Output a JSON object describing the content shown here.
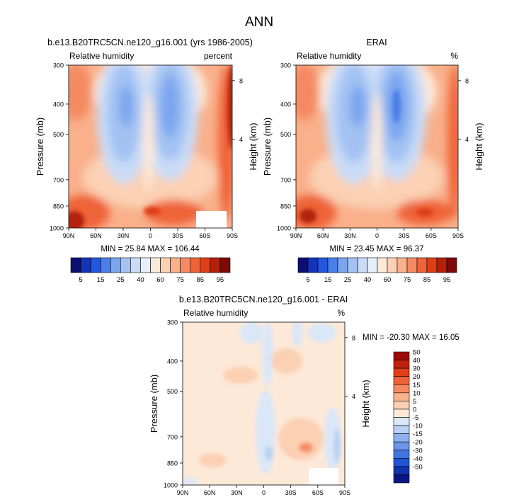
{
  "page_title": "ANN",
  "panels": [
    {
      "id": "model",
      "title": "b.e13.B20TRC5CN.ne120_g16.001 (yrs 1986-2005)",
      "left_label": "Relative humidity",
      "right_label": "percent",
      "stats": "MIN = 25.84  MAX = 106.44"
    },
    {
      "id": "obs",
      "title": "ERAI",
      "left_label": "Relative humidity",
      "right_label": "%",
      "stats": "MIN = 23.45  MAX = 96.37"
    },
    {
      "id": "diff",
      "title": "b.e13.B20TRC5CN.ne120_g16.001 - ERAI",
      "left_label": "Relative humidity",
      "right_label": "%",
      "stats": "MIN = -20.30  MAX = 16.05"
    }
  ],
  "axes": {
    "ylabel": "Pressure (mb)",
    "ylabel_right": "Height (km)",
    "pressure_ticks": [
      "300",
      "400",
      "500",
      "700",
      "850",
      "1000"
    ],
    "height_ticks": [
      "8",
      "4"
    ],
    "lat_ticks": [
      "90N",
      "60N",
      "30N",
      "0",
      "30S",
      "60S",
      "90S"
    ]
  },
  "colorbar_top": {
    "labels": [
      "5",
      "15",
      "25",
      "40",
      "60",
      "75",
      "85",
      "95"
    ],
    "colors": [
      "#0b0f73",
      "#1533b8",
      "#2357e0",
      "#4a7ee8",
      "#7aa5ef",
      "#a3c2f3",
      "#c9dbf7",
      "#e6eefb",
      "#fde9d8",
      "#fbd0b3",
      "#f9b08b",
      "#f58a62",
      "#ef6339",
      "#de3e18",
      "#b4200c",
      "#7d0a07"
    ]
  },
  "colorbar_diff": {
    "labels": [
      "50",
      "40",
      "30",
      "20",
      "15",
      "10",
      "5",
      "0",
      "-5",
      "-10",
      "-15",
      "-20",
      "-30",
      "-40",
      "-50"
    ],
    "colors": [
      "#9b0a07",
      "#c0200c",
      "#de3e18",
      "#ef6339",
      "#f58a62",
      "#f9b08b",
      "#fbd0b3",
      "#fde9d8",
      "#dae7f8",
      "#b8d0f4",
      "#8fb2ee",
      "#6a95e8",
      "#4176e0",
      "#2154d2",
      "#1231aa",
      "#0b1580"
    ]
  },
  "chart_data": [
    {
      "type": "heatmap",
      "title": "b.e13.B20TRC5CN.ne120_g16.001 (yrs 1986-2005)",
      "ylabel": "Pressure (mb)",
      "x": [
        "90N",
        "60N",
        "30N",
        "0",
        "30S",
        "60S",
        "90S"
      ],
      "y": [
        300,
        400,
        500,
        700,
        850,
        1000
      ],
      "values": [
        [
          70,
          60,
          30,
          45,
          32,
          55,
          85
        ],
        [
          75,
          58,
          28,
          42,
          28,
          52,
          82
        ],
        [
          70,
          55,
          30,
          48,
          32,
          55,
          78
        ],
        [
          68,
          60,
          42,
          60,
          45,
          62,
          75
        ],
        [
          78,
          72,
          65,
          70,
          68,
          75,
          80
        ],
        [
          90,
          85,
          82,
          80,
          85,
          88,
          85
        ]
      ],
      "min": 25.84,
      "max": 106.44
    },
    {
      "type": "heatmap",
      "title": "ERAI",
      "ylabel": "Pressure (mb)",
      "x": [
        "90N",
        "60N",
        "30N",
        "0",
        "30S",
        "60S",
        "90S"
      ],
      "y": [
        300,
        400,
        500,
        700,
        850,
        1000
      ],
      "values": [
        [
          68,
          55,
          35,
          48,
          30,
          55,
          90
        ],
        [
          75,
          55,
          28,
          45,
          22,
          50,
          80
        ],
        [
          68,
          52,
          30,
          50,
          25,
          52,
          75
        ],
        [
          65,
          58,
          40,
          62,
          40,
          60,
          72
        ],
        [
          78,
          70,
          60,
          70,
          62,
          72,
          80
        ],
        [
          88,
          82,
          78,
          80,
          82,
          85,
          85
        ]
      ],
      "min": 23.45,
      "max": 96.37
    },
    {
      "type": "heatmap",
      "title": "b.e13.B20TRC5CN.ne120_g16.001 - ERAI",
      "ylabel": "Pressure (mb)",
      "x": [
        "90N",
        "60N",
        "30N",
        "0",
        "30S",
        "60S",
        "90S"
      ],
      "y": [
        300,
        400,
        500,
        700,
        850,
        1000
      ],
      "values": [
        [
          2,
          4,
          -5,
          -3,
          -6,
          3,
          4
        ],
        [
          1,
          3,
          2,
          -3,
          6,
          2,
          2
        ],
        [
          2,
          4,
          3,
          -2,
          5,
          2,
          3
        ],
        [
          3,
          2,
          3,
          -3,
          6,
          8,
          -4
        ],
        [
          2,
          3,
          5,
          1,
          8,
          15,
          -8
        ],
        [
          3,
          3,
          4,
          2,
          4,
          3,
          2
        ]
      ],
      "min": -20.3,
      "max": 16.05
    }
  ]
}
